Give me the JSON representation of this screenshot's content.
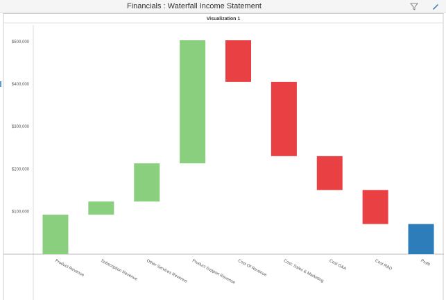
{
  "header": {
    "title": "Financials : Waterfall Income Statement"
  },
  "chart_data": {
    "type": "waterfall",
    "title": "Visualization 1",
    "categories": [
      "Product Revenue",
      "Subscription Revenue",
      "Other Services Revenue",
      "Product Support Revenue",
      "Cost Of Revenue",
      "Cost: Sales & Marketing",
      "Cost G&A",
      "Cost R&D",
      "Profit"
    ],
    "values": [
      93000,
      31000,
      90000,
      290000,
      -98000,
      -175000,
      -80000,
      -80000,
      71000
    ],
    "measures": [
      "relative",
      "relative",
      "relative",
      "relative",
      "relative",
      "relative",
      "relative",
      "relative",
      "total"
    ],
    "colors": {
      "increase": "#8acf7e",
      "decrease": "#e94143",
      "total": "#2e7dbb"
    },
    "ylim": [
      0,
      540000
    ],
    "yticks": [
      {
        "value": 100000,
        "label": "$100,000"
      },
      {
        "value": 200000,
        "label": "$200,000"
      },
      {
        "value": 300000,
        "label": "$300,000"
      },
      {
        "value": 400000,
        "label": "$400,000"
      },
      {
        "value": 500000,
        "label": "$500,000"
      }
    ],
    "grid": false
  }
}
